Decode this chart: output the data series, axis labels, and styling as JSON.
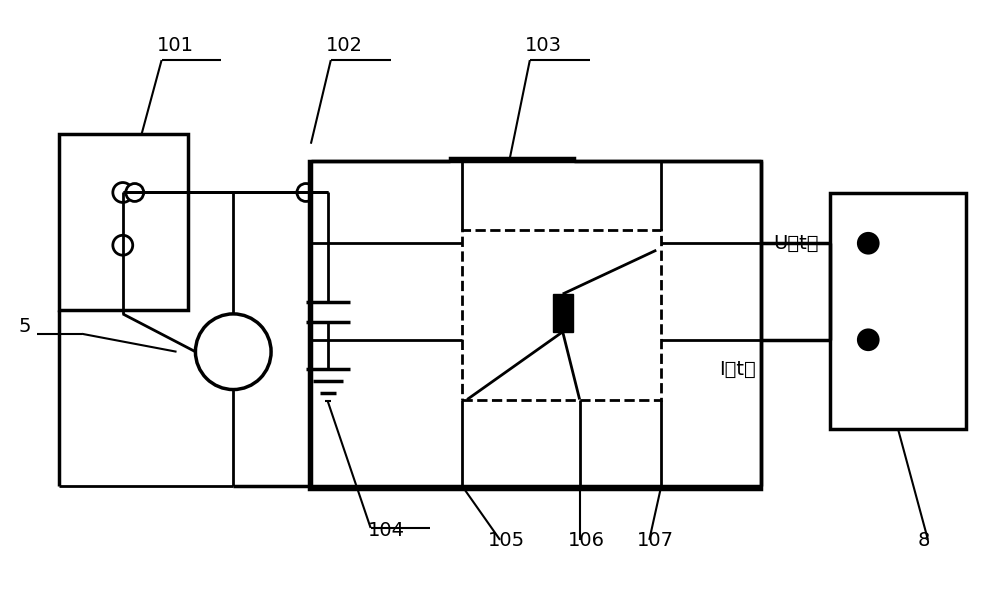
{
  "bg_color": "#ffffff",
  "line_color": "#000000",
  "lw": 1.8,
  "lw_thick": 2.5,
  "fig_width": 10.0,
  "fig_height": 5.89
}
